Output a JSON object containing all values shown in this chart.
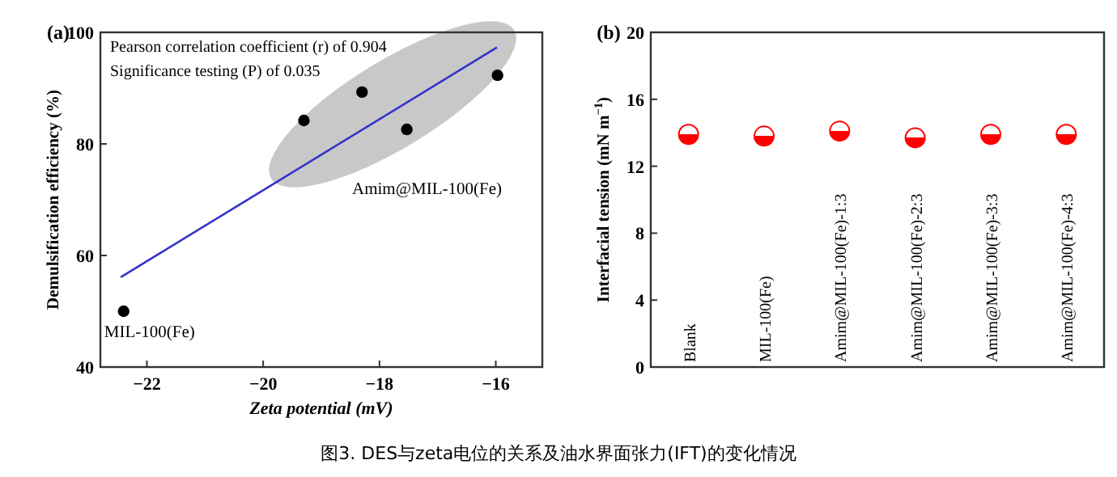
{
  "chart_data": [
    {
      "type": "scatter",
      "title": "(a)",
      "xlabel": "Zeta potential (mV)",
      "ylabel": "Demulsification efficiency (%)",
      "xlim": [
        -22.8,
        -15.2
      ],
      "xticks": [
        -22,
        -20,
        -18,
        -16
      ],
      "ylim": [
        40,
        100
      ],
      "yticks": [
        40,
        60,
        80,
        100
      ],
      "grid": false,
      "series": [
        {
          "type": "scatter",
          "marker": "circle",
          "color": "#000000",
          "x": [
            -15.97,
            -17.53,
            -18.3,
            -19.3,
            -22.4
          ],
          "values": [
            92.3,
            82.6,
            89.3,
            84.2,
            50.0
          ]
        },
        {
          "type": "line",
          "color": "#3333cc",
          "x": [
            -15.98,
            -22.45
          ],
          "values": [
            97.3,
            56.1
          ]
        }
      ],
      "annotations": [
        "Pearson correlation coefficient (r) of 0.904",
        "Significance testing (P) of 0.035",
        "Amim@MIL-100(Fe)",
        {
          "text": "MIL-100(Fe)",
          "x": -22.4,
          "y": 50.0
        }
      ]
    },
    {
      "type": "scatter",
      "title": "(b)",
      "ylabel": "Interfacial tension (mN m$^{−1}$)",
      "categories": [
        "Blank",
        "MIL-100(Fe)",
        "Amim@MIL-100(Fe)-1:3",
        "Amim@MIL-100(Fe)-2:3",
        "Amim@MIL-100(Fe)-3:3",
        "Amim@MIL-100(Fe)-4:3"
      ],
      "values": [
        13.9,
        13.8,
        14.1,
        13.7,
        13.9,
        13.9
      ],
      "color": "#ff0000",
      "marker": "circle",
      "ylim": [
        0,
        20
      ],
      "yticks": [
        0,
        4,
        8,
        12,
        16,
        20
      ],
      "grid": false
    },
    {
      "type": "other",
      "title": "图3. DES与zeta电位的关系及油水界面张力(IFT)的变化情况"
    }
  ]
}
